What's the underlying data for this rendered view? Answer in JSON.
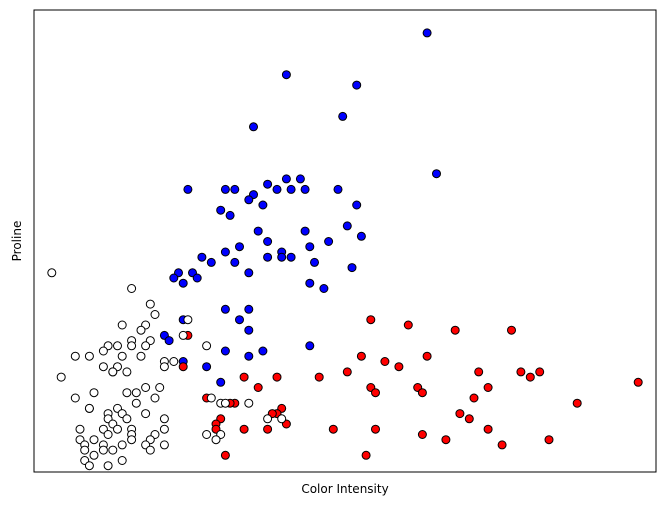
{
  "chart_data": {
    "type": "scatter",
    "xlabel": "Color Intensity",
    "ylabel": "Proline",
    "xlim": [
      0.62,
      13.88
    ],
    "ylim": [
      0.58,
      9.44
    ],
    "xticks": [],
    "yticks": [],
    "grid": false,
    "legend": "none",
    "series": [
      {
        "color": "#0000ff",
        "points": [
          [
            9.0,
            9.0
          ],
          [
            6.0,
            8.2
          ],
          [
            7.5,
            8.0
          ],
          [
            7.2,
            7.4
          ],
          [
            5.3,
            7.2
          ],
          [
            9.2,
            6.3
          ],
          [
            6.0,
            6.2
          ],
          [
            5.6,
            6.1
          ],
          [
            3.9,
            6.0
          ],
          [
            5.3,
            5.9
          ],
          [
            4.7,
            6.0
          ],
          [
            5.2,
            5.8
          ],
          [
            5.8,
            6.0
          ],
          [
            4.9,
            6.0
          ],
          [
            7.1,
            6.0
          ],
          [
            6.1,
            6.0
          ],
          [
            6.3,
            6.2
          ],
          [
            6.4,
            6.0
          ],
          [
            5.5,
            5.7
          ],
          [
            4.6,
            5.6
          ],
          [
            7.5,
            5.7
          ],
          [
            4.8,
            5.5
          ],
          [
            7.3,
            5.3
          ],
          [
            5.4,
            5.2
          ],
          [
            6.4,
            5.2
          ],
          [
            5.6,
            5.0
          ],
          [
            6.9,
            5.0
          ],
          [
            5.9,
            4.8
          ],
          [
            7.6,
            5.1
          ],
          [
            6.5,
            4.9
          ],
          [
            5.0,
            4.9
          ],
          [
            4.7,
            4.8
          ],
          [
            4.2,
            4.7
          ],
          [
            5.6,
            4.7
          ],
          [
            5.9,
            4.7
          ],
          [
            6.1,
            4.7
          ],
          [
            6.6,
            4.6
          ],
          [
            7.4,
            4.5
          ],
          [
            4.4,
            4.6
          ],
          [
            4.9,
            4.6
          ],
          [
            5.2,
            4.4
          ],
          [
            4.0,
            4.4
          ],
          [
            3.7,
            4.4
          ],
          [
            4.1,
            4.3
          ],
          [
            3.6,
            4.3
          ],
          [
            3.8,
            4.2
          ],
          [
            6.5,
            4.2
          ],
          [
            6.8,
            4.1
          ],
          [
            4.7,
            3.7
          ],
          [
            5.2,
            3.7
          ],
          [
            5.0,
            3.5
          ],
          [
            3.8,
            3.5
          ],
          [
            5.2,
            3.3
          ],
          [
            3.4,
            3.2
          ],
          [
            3.5,
            3.1
          ],
          [
            6.5,
            3.0
          ],
          [
            4.7,
            2.9
          ],
          [
            5.5,
            2.9
          ],
          [
            5.2,
            2.8
          ],
          [
            4.3,
            2.6
          ],
          [
            3.8,
            2.7
          ],
          [
            4.6,
            2.3
          ]
        ]
      },
      {
        "color": "#ff0000",
        "points": [
          [
            7.8,
            3.5
          ],
          [
            8.6,
            3.4
          ],
          [
            9.6,
            3.3
          ],
          [
            10.8,
            3.3
          ],
          [
            3.9,
            3.2
          ],
          [
            7.6,
            2.8
          ],
          [
            9.0,
            2.8
          ],
          [
            8.1,
            2.7
          ],
          [
            8.4,
            2.6
          ],
          [
            7.3,
            2.5
          ],
          [
            10.1,
            2.5
          ],
          [
            11.0,
            2.5
          ],
          [
            11.4,
            2.5
          ],
          [
            11.2,
            2.4
          ],
          [
            3.8,
            2.6
          ],
          [
            5.8,
            2.4
          ],
          [
            5.1,
            2.4
          ],
          [
            6.7,
            2.4
          ],
          [
            13.5,
            2.3
          ],
          [
            8.8,
            2.2
          ],
          [
            7.8,
            2.2
          ],
          [
            10.3,
            2.2
          ],
          [
            5.4,
            2.2
          ],
          [
            7.9,
            2.1
          ],
          [
            8.9,
            2.1
          ],
          [
            4.3,
            2.0
          ],
          [
            10.0,
            2.0
          ],
          [
            12.2,
            1.9
          ],
          [
            4.9,
            1.9
          ],
          [
            4.8,
            1.9
          ],
          [
            5.9,
            1.8
          ],
          [
            5.8,
            1.7
          ],
          [
            9.7,
            1.7
          ],
          [
            5.7,
            1.7
          ],
          [
            9.9,
            1.6
          ],
          [
            4.6,
            1.6
          ],
          [
            4.5,
            1.5
          ],
          [
            10.3,
            1.4
          ],
          [
            6.0,
            1.5
          ],
          [
            5.6,
            1.4
          ],
          [
            7.9,
            1.4
          ],
          [
            4.5,
            1.4
          ],
          [
            5.1,
            1.4
          ],
          [
            7.0,
            1.4
          ],
          [
            8.9,
            1.3
          ],
          [
            11.6,
            1.2
          ],
          [
            9.4,
            1.2
          ],
          [
            10.6,
            1.1
          ],
          [
            7.7,
            0.9
          ],
          [
            4.7,
            0.9
          ]
        ]
      },
      {
        "color": "#ffffff",
        "points": [
          [
            2.7,
            4.1
          ],
          [
            1.0,
            4.4
          ],
          [
            3.1,
            3.8
          ],
          [
            3.2,
            3.6
          ],
          [
            3.9,
            3.5
          ],
          [
            2.5,
            3.4
          ],
          [
            3.0,
            3.4
          ],
          [
            2.9,
            3.3
          ],
          [
            3.8,
            3.2
          ],
          [
            3.1,
            3.1
          ],
          [
            2.7,
            3.1
          ],
          [
            4.3,
            3.0
          ],
          [
            2.2,
            3.0
          ],
          [
            2.4,
            3.0
          ],
          [
            2.7,
            3.0
          ],
          [
            3.0,
            3.0
          ],
          [
            2.1,
            2.9
          ],
          [
            1.5,
            2.8
          ],
          [
            1.8,
            2.8
          ],
          [
            2.9,
            2.8
          ],
          [
            2.5,
            2.8
          ],
          [
            3.4,
            2.7
          ],
          [
            3.6,
            2.7
          ],
          [
            3.4,
            2.6
          ],
          [
            2.1,
            2.6
          ],
          [
            2.4,
            2.6
          ],
          [
            2.3,
            2.5
          ],
          [
            1.2,
            2.4
          ],
          [
            2.3,
            2.5
          ],
          [
            2.6,
            2.5
          ],
          [
            3.3,
            2.2
          ],
          [
            1.9,
            2.1
          ],
          [
            2.6,
            2.1
          ],
          [
            2.8,
            2.1
          ],
          [
            3.0,
            2.2
          ],
          [
            4.4,
            2.0
          ],
          [
            1.5,
            2.0
          ],
          [
            3.2,
            2.0
          ],
          [
            2.8,
            1.9
          ],
          [
            4.6,
            1.9
          ],
          [
            4.7,
            1.9
          ],
          [
            5.2,
            1.9
          ],
          [
            1.8,
            1.8
          ],
          [
            2.4,
            1.8
          ],
          [
            1.8,
            1.8
          ],
          [
            2.2,
            1.7
          ],
          [
            2.5,
            1.7
          ],
          [
            3.0,
            1.7
          ],
          [
            2.2,
            1.6
          ],
          [
            2.6,
            1.6
          ],
          [
            3.4,
            1.6
          ],
          [
            5.6,
            1.6
          ],
          [
            5.9,
            1.6
          ],
          [
            2.3,
            1.5
          ],
          [
            2.1,
            1.4
          ],
          [
            1.6,
            1.4
          ],
          [
            2.4,
            1.4
          ],
          [
            2.7,
            1.4
          ],
          [
            3.4,
            1.4
          ],
          [
            2.2,
            1.3
          ],
          [
            2.7,
            1.3
          ],
          [
            3.2,
            1.3
          ],
          [
            4.3,
            1.3
          ],
          [
            4.6,
            1.3
          ],
          [
            1.9,
            1.2
          ],
          [
            1.6,
            1.2
          ],
          [
            2.7,
            1.2
          ],
          [
            3.1,
            1.2
          ],
          [
            4.5,
            1.2
          ],
          [
            2.5,
            1.1
          ],
          [
            3.0,
            1.1
          ],
          [
            3.4,
            1.1
          ],
          [
            2.1,
            1.1
          ],
          [
            1.7,
            1.1
          ],
          [
            1.7,
            1.0
          ],
          [
            3.1,
            1.0
          ],
          [
            2.1,
            1.0
          ],
          [
            2.3,
            1.0
          ],
          [
            1.9,
            0.9
          ],
          [
            1.7,
            0.8
          ],
          [
            2.5,
            0.8
          ],
          [
            1.8,
            0.7
          ],
          [
            2.2,
            0.7
          ]
        ]
      }
    ]
  }
}
